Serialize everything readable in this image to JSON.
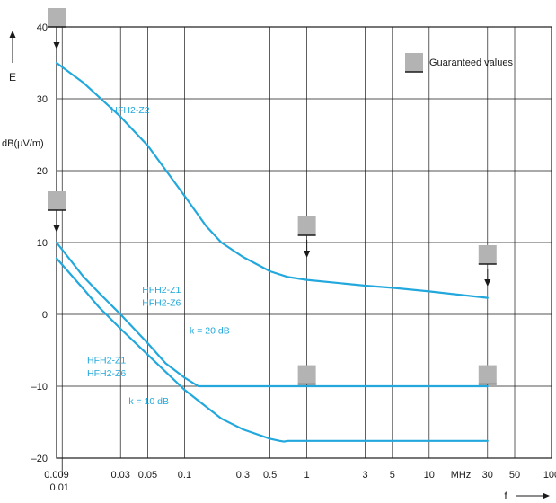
{
  "chart_data": {
    "type": "line",
    "x_scale": "log",
    "xlim": [
      0.009,
      100
    ],
    "ylim": [
      -20,
      40
    ],
    "grid": true,
    "x_ticks": [
      {
        "v": 0.009,
        "label": "0.009"
      },
      {
        "v": 0.01,
        "label": "0.01"
      },
      {
        "v": 0.03,
        "label": "0.03"
      },
      {
        "v": 0.05,
        "label": "0.05"
      },
      {
        "v": 0.1,
        "label": "0.1"
      },
      {
        "v": 0.3,
        "label": "0.3"
      },
      {
        "v": 0.5,
        "label": "0.5"
      },
      {
        "v": 1,
        "label": "1"
      },
      {
        "v": 3,
        "label": "3"
      },
      {
        "v": 5,
        "label": "5"
      },
      {
        "v": 10,
        "label": "10"
      },
      {
        "v": 30,
        "label": "30"
      },
      {
        "v": 50,
        "label": "50"
      },
      {
        "v": 100,
        "label": "100"
      }
    ],
    "x_unit_label": "MHz",
    "y_ticks": [
      40,
      30,
      20,
      10,
      0,
      -10,
      -20
    ],
    "y_tick_labels": [
      "40",
      "30",
      "20",
      "10",
      "0",
      "–10",
      "–20"
    ],
    "y_axis_symbol": "E",
    "y_unit_label": "dB(μV/m)",
    "x_axis_symbol": "f",
    "legend": {
      "label": "Guaranteed values",
      "position": "top-right"
    },
    "series": [
      {
        "name": "HFH2-Z2",
        "color": "#22a8dc",
        "x": [
          0.009,
          0.015,
          0.03,
          0.05,
          0.1,
          0.15,
          0.2,
          0.3,
          0.5,
          0.7,
          1,
          3,
          5,
          10,
          30
        ],
        "y": [
          35,
          32.2,
          27.5,
          23.5,
          16.5,
          12.3,
          10,
          8,
          6,
          5.2,
          4.8,
          4,
          3.7,
          3.2,
          2.3
        ]
      },
      {
        "name": "HFH2-Z1 / HFH2-Z6 (k = 20 dB)",
        "color": "#22a8dc",
        "x": [
          0.009,
          0.015,
          0.02,
          0.03,
          0.05,
          0.07,
          0.1,
          0.13,
          0.3,
          1,
          10,
          30
        ],
        "y": [
          10,
          5.2,
          3,
          0,
          -4,
          -6.8,
          -8.8,
          -10,
          -10,
          -10,
          -10,
          -10
        ]
      },
      {
        "name": "HFH2-Z1 / HFH2-Z6 (k = 10 dB)",
        "color": "#22a8dc",
        "x": [
          0.009,
          0.015,
          0.02,
          0.03,
          0.05,
          0.1,
          0.2,
          0.3,
          0.5,
          0.6,
          0.65,
          0.7,
          1,
          10,
          30
        ],
        "y": [
          7.8,
          3.5,
          1,
          -2,
          -5.6,
          -10.5,
          -14.5,
          -16,
          -17.3,
          -17.6,
          -17.7,
          -17.6,
          -17.6,
          -17.6,
          -17.6
        ]
      }
    ],
    "guaranteed_values": [
      {
        "x": 0.009,
        "y": 40,
        "arrow": true
      },
      {
        "x": 0.009,
        "y": 14.5,
        "arrow": true
      },
      {
        "x": 1,
        "y": 11,
        "arrow": true
      },
      {
        "x": 30,
        "y": 7,
        "arrow": true
      },
      {
        "x": 1,
        "y": -9.7,
        "arrow": false
      },
      {
        "x": 30,
        "y": -9.7,
        "arrow": false
      }
    ],
    "annotations": [
      {
        "text": "HFH2-Z2",
        "x": 0.025,
        "y": 28
      },
      {
        "text": "HFH2-Z1",
        "x": 0.045,
        "y": 3
      },
      {
        "text": "HFH2-Z6",
        "x": 0.045,
        "y": 1.2
      },
      {
        "text": "k = 20 dB",
        "x": 0.11,
        "y": -2.7
      },
      {
        "text": "HFH2-Z1",
        "x": 0.016,
        "y": -6.8
      },
      {
        "text": "HFH2-Z6",
        "x": 0.016,
        "y": -8.6
      },
      {
        "text": "k = 10 dB",
        "x": 0.035,
        "y": -12.5
      }
    ]
  }
}
